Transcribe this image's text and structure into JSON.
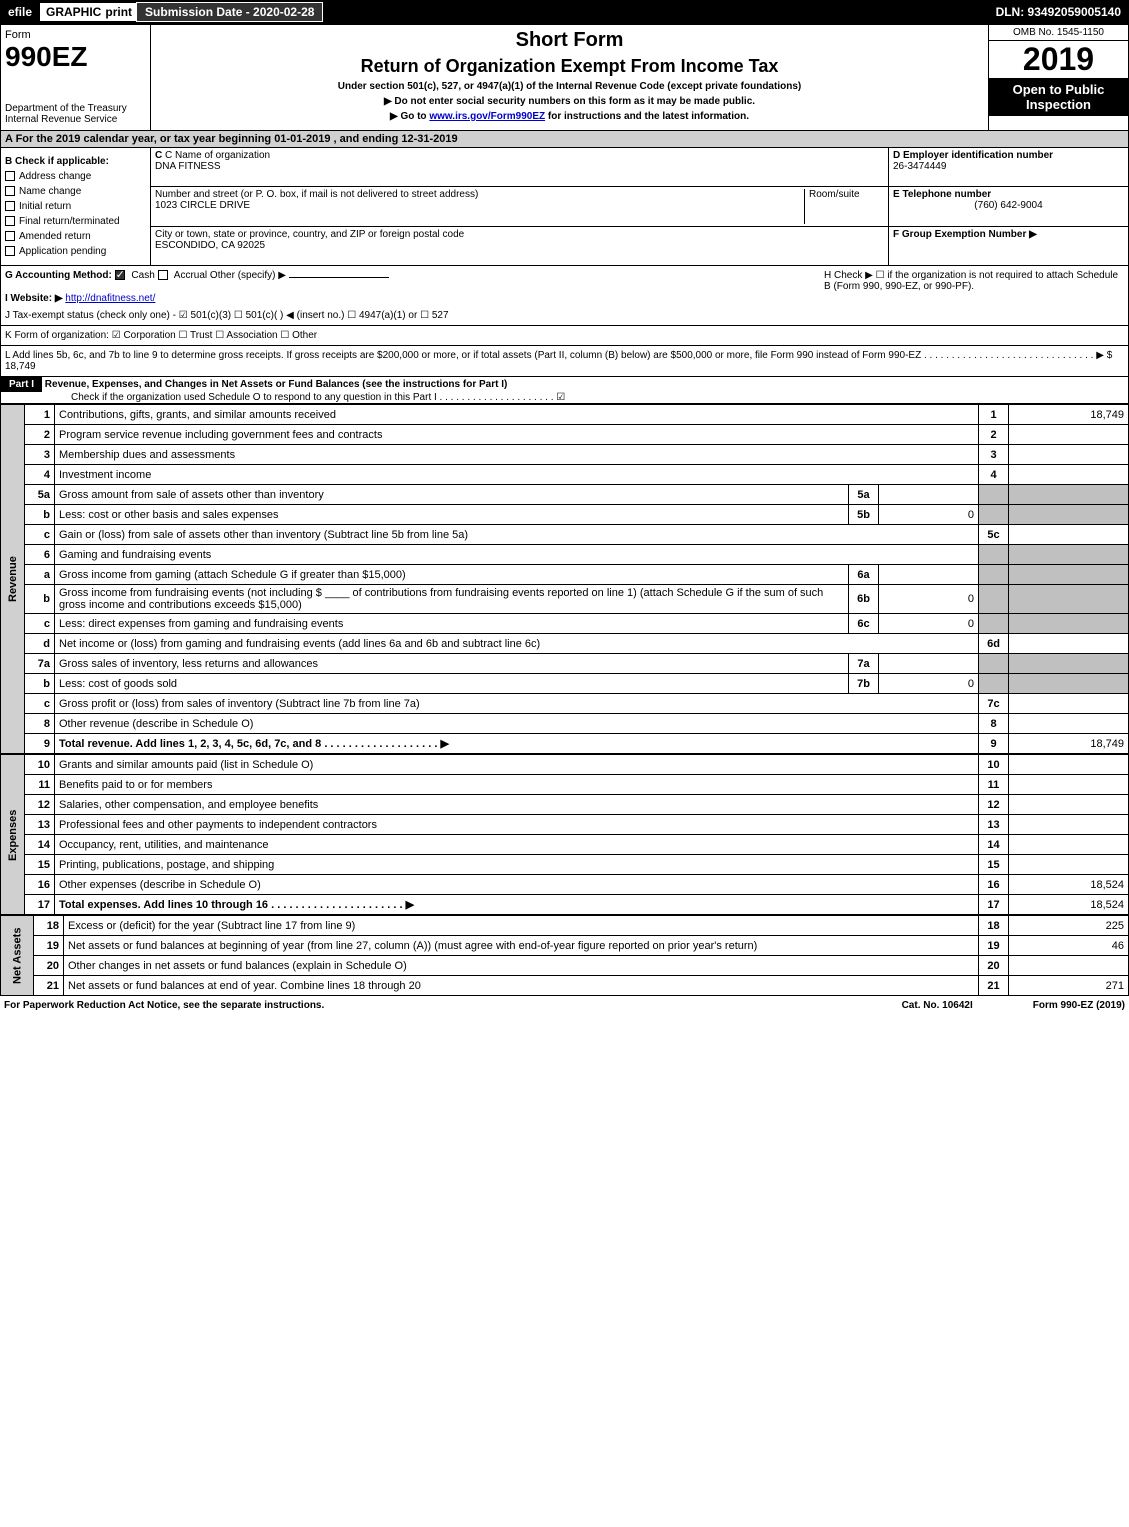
{
  "topbar": {
    "efile": "efile",
    "graphic": "GRAPHIC",
    "print": "print",
    "subdate": "Submission Date - 2020-02-28",
    "dln": "DLN: 93492059005140"
  },
  "header": {
    "form_word": "Form",
    "form_no": "990EZ",
    "dept": "Department of the Treasury",
    "irs": "Internal Revenue Service",
    "short_form": "Short Form",
    "title": "Return of Organization Exempt From Income Tax",
    "sub1": "Under section 501(c), 527, or 4947(a)(1) of the Internal Revenue Code (except private foundations)",
    "sub2": "▶ Do not enter social security numbers on this form as it may be made public.",
    "sub3": "▶ Go to www.irs.gov/Form990EZ for instructions and the latest information.",
    "omb": "OMB No. 1545-1150",
    "year": "2019",
    "inspect1": "Open to Public",
    "inspect2": "Inspection"
  },
  "row_a": "A For the 2019 calendar year, or tax year beginning 01-01-2019 , and ending 12-31-2019",
  "col_b": {
    "title": "B Check if applicable:",
    "items": [
      "Address change",
      "Name change",
      "Initial return",
      "Final return/terminated",
      "Amended return",
      "Application pending"
    ]
  },
  "col_c": {
    "name_lbl": "C Name of organization",
    "name": "DNA FITNESS",
    "addr_lbl": "Number and street (or P. O. box, if mail is not delivered to street address)",
    "room_lbl": "Room/suite",
    "addr": "1023 CIRCLE DRIVE",
    "city_lbl": "City or town, state or province, country, and ZIP or foreign postal code",
    "city": "ESCONDIDO, CA  92025"
  },
  "col_def": {
    "d_lbl": "D Employer identification number",
    "d_val": "26-3474449",
    "e_lbl": "E Telephone number",
    "e_val": "(760) 642-9004",
    "f_lbl": "F Group Exemption Number  ▶"
  },
  "row_ghij": {
    "g": "G Accounting Method:",
    "g_cash": "Cash",
    "g_accrual": "Accrual",
    "g_other": "Other (specify) ▶",
    "h": "H  Check ▶ ☐ if the organization is not required to attach Schedule B (Form 990, 990-EZ, or 990-PF).",
    "i_lbl": "I Website: ▶",
    "i_val": "http://dnafitness.net/",
    "j": "J Tax-exempt status (check only one) - ☑ 501(c)(3) ☐ 501(c)(  ) ◀ (insert no.) ☐ 4947(a)(1) or ☐ 527"
  },
  "row_k": "K Form of organization:  ☑ Corporation  ☐ Trust  ☐ Association  ☐ Other",
  "row_l": "L Add lines 5b, 6c, and 7b to line 9 to determine gross receipts. If gross receipts are $200,000 or more, or if total assets (Part II, column (B) below) are $500,000 or more, file Form 990 instead of Form 990-EZ . . . . . . . . . . . . . . . . . . . . . . . . . . . . . . . ▶ $ 18,749",
  "part1": {
    "head": "Part I",
    "title": "Revenue, Expenses, and Changes in Net Assets or Fund Balances (see the instructions for Part I)",
    "check": "Check if the organization used Schedule O to respond to any question in this Part I . . . . . . . . . . . . . . . . . . . . .  ☑"
  },
  "sections": {
    "revenue": "Revenue",
    "expenses": "Expenses",
    "netassets": "Net Assets"
  },
  "lines": [
    {
      "n": "1",
      "d": "Contributions, gifts, grants, and similar amounts received",
      "no": "1",
      "amt": "18,749"
    },
    {
      "n": "2",
      "d": "Program service revenue including government fees and contracts",
      "no": "2",
      "amt": ""
    },
    {
      "n": "3",
      "d": "Membership dues and assessments",
      "no": "3",
      "amt": ""
    },
    {
      "n": "4",
      "d": "Investment income",
      "no": "4",
      "amt": ""
    },
    {
      "n": "5a",
      "d": "Gross amount from sale of assets other than inventory",
      "sub": "5a",
      "subamt": "",
      "shade": true
    },
    {
      "n": "b",
      "d": "Less: cost or other basis and sales expenses",
      "sub": "5b",
      "subamt": "0",
      "shade": true
    },
    {
      "n": "c",
      "d": "Gain or (loss) from sale of assets other than inventory (Subtract line 5b from line 5a)",
      "no": "5c",
      "amt": ""
    },
    {
      "n": "6",
      "d": "Gaming and fundraising events",
      "shade": true
    },
    {
      "n": "a",
      "d": "Gross income from gaming (attach Schedule G if greater than $15,000)",
      "sub": "6a",
      "subamt": "",
      "shade": true
    },
    {
      "n": "b",
      "d": "Gross income from fundraising events (not including $ ____ of contributions from fundraising events reported on line 1) (attach Schedule G if the sum of such gross income and contributions exceeds $15,000)",
      "sub": "6b",
      "subamt": "0",
      "shade": true
    },
    {
      "n": "c",
      "d": "Less: direct expenses from gaming and fundraising events",
      "sub": "6c",
      "subamt": "0",
      "shade": true
    },
    {
      "n": "d",
      "d": "Net income or (loss) from gaming and fundraising events (add lines 6a and 6b and subtract line 6c)",
      "no": "6d",
      "amt": ""
    },
    {
      "n": "7a",
      "d": "Gross sales of inventory, less returns and allowances",
      "sub": "7a",
      "subamt": "",
      "shade": true
    },
    {
      "n": "b",
      "d": "Less: cost of goods sold",
      "sub": "7b",
      "subamt": "0",
      "shade": true
    },
    {
      "n": "c",
      "d": "Gross profit or (loss) from sales of inventory (Subtract line 7b from line 7a)",
      "no": "7c",
      "amt": ""
    },
    {
      "n": "8",
      "d": "Other revenue (describe in Schedule O)",
      "no": "8",
      "amt": ""
    },
    {
      "n": "9",
      "d": "Total revenue. Add lines 1, 2, 3, 4, 5c, 6d, 7c, and 8  . . . . . . . . . . . . . . . . . . . ▶",
      "no": "9",
      "amt": "18,749",
      "bold": true
    }
  ],
  "exp_lines": [
    {
      "n": "10",
      "d": "Grants and similar amounts paid (list in Schedule O)",
      "no": "10",
      "amt": ""
    },
    {
      "n": "11",
      "d": "Benefits paid to or for members",
      "no": "11",
      "amt": ""
    },
    {
      "n": "12",
      "d": "Salaries, other compensation, and employee benefits",
      "no": "12",
      "amt": ""
    },
    {
      "n": "13",
      "d": "Professional fees and other payments to independent contractors",
      "no": "13",
      "amt": ""
    },
    {
      "n": "14",
      "d": "Occupancy, rent, utilities, and maintenance",
      "no": "14",
      "amt": ""
    },
    {
      "n": "15",
      "d": "Printing, publications, postage, and shipping",
      "no": "15",
      "amt": ""
    },
    {
      "n": "16",
      "d": "Other expenses (describe in Schedule O)",
      "no": "16",
      "amt": "18,524"
    },
    {
      "n": "17",
      "d": "Total expenses. Add lines 10 through 16  . . . . . . . . . . . . . . . . . . . . . . ▶",
      "no": "17",
      "amt": "18,524",
      "bold": true
    }
  ],
  "na_lines": [
    {
      "n": "18",
      "d": "Excess or (deficit) for the year (Subtract line 17 from line 9)",
      "no": "18",
      "amt": "225"
    },
    {
      "n": "19",
      "d": "Net assets or fund balances at beginning of year (from line 27, column (A)) (must agree with end-of-year figure reported on prior year's return)",
      "no": "19",
      "amt": "46"
    },
    {
      "n": "20",
      "d": "Other changes in net assets or fund balances (explain in Schedule O)",
      "no": "20",
      "amt": ""
    },
    {
      "n": "21",
      "d": "Net assets or fund balances at end of year. Combine lines 18 through 20",
      "no": "21",
      "amt": "271"
    }
  ],
  "footer": {
    "left": "For Paperwork Reduction Act Notice, see the separate instructions.",
    "mid": "Cat. No. 10642I",
    "right": "Form 990-EZ (2019)"
  }
}
